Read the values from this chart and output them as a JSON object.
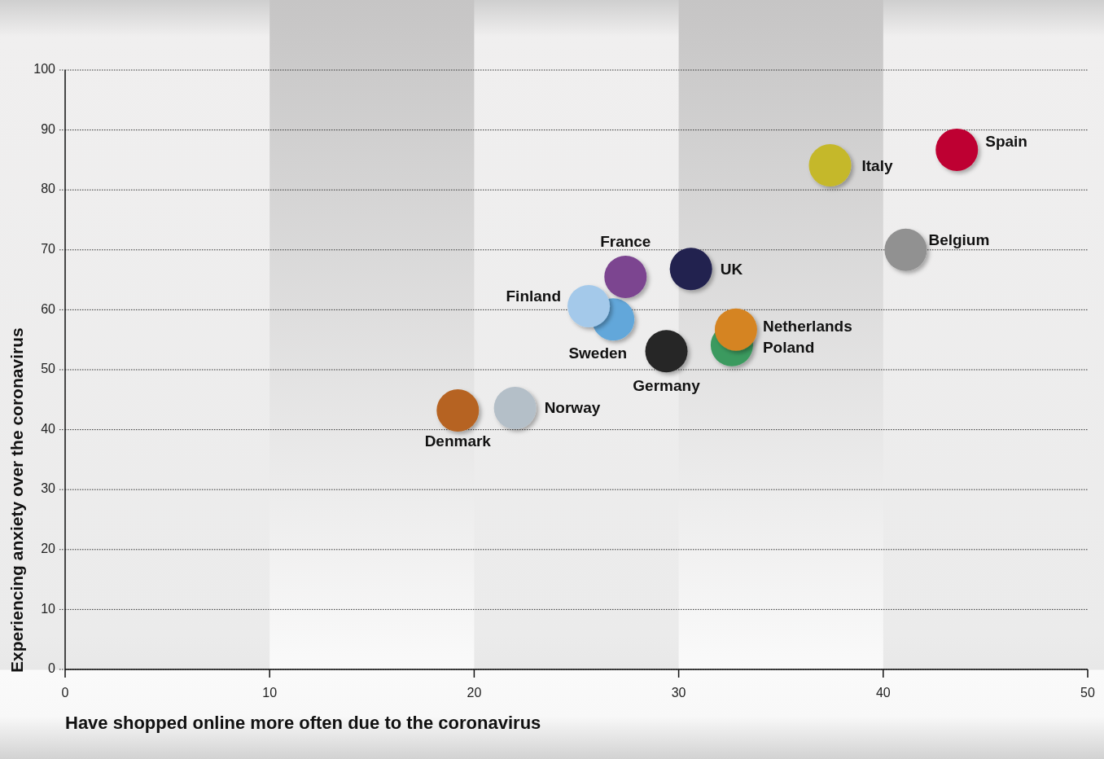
{
  "chart_data": {
    "type": "scatter",
    "xlabel": "Have shopped online more often due to the coronavirus",
    "ylabel": "Experiencing anxiety over the coronavirus",
    "xlim": [
      0,
      50
    ],
    "xticks": [
      0,
      10,
      20,
      30,
      40,
      50
    ],
    "ylim": [
      0,
      100
    ],
    "yticks": [
      0,
      10,
      20,
      30,
      40,
      50,
      60,
      70,
      80,
      90,
      100
    ],
    "grid": "y",
    "marker": "circle",
    "bands": [
      {
        "axis": "x",
        "from": 10,
        "to": 20,
        "color": "#c6c5c5"
      },
      {
        "axis": "x",
        "from": 30,
        "to": 40,
        "color": "#c6c5c5"
      }
    ],
    "series": [
      {
        "name": "Denmark",
        "color": "#b66421",
        "x": [
          19.2
        ],
        "values": [
          43.2
        ]
      },
      {
        "name": "Norway",
        "color": "#b4bfc8",
        "x": [
          22.0
        ],
        "values": [
          43.6
        ]
      },
      {
        "name": "Germany",
        "color": "#282828",
        "x": [
          29.4
        ],
        "values": [
          53.1
        ]
      },
      {
        "name": "Sweden",
        "color": "#62a7da",
        "x": [
          26.8
        ],
        "values": [
          58.4
        ]
      },
      {
        "name": "Finland",
        "color": "#a4c9ea",
        "x": [
          25.6
        ],
        "values": [
          60.6
        ]
      },
      {
        "name": "France",
        "color": "#7b4590",
        "x": [
          27.4
        ],
        "values": [
          65.5
        ]
      },
      {
        "name": "UK",
        "color": "#21204f",
        "x": [
          30.6
        ],
        "values": [
          66.8
        ]
      },
      {
        "name": "Poland",
        "color": "#3b9a5e",
        "x": [
          32.6
        ],
        "values": [
          54.1
        ]
      },
      {
        "name": "Netherlands",
        "color": "#d58422",
        "x": [
          32.8
        ],
        "values": [
          56.7
        ]
      },
      {
        "name": "Belgium",
        "color": "#919191",
        "x": [
          41.1
        ],
        "values": [
          70.0
        ]
      },
      {
        "name": "Italy",
        "color": "#c5b82a",
        "x": [
          37.4
        ],
        "values": [
          84.1
        ]
      },
      {
        "name": "Spain",
        "color": "#be0030",
        "x": [
          43.6
        ],
        "values": [
          86.7
        ]
      }
    ]
  }
}
